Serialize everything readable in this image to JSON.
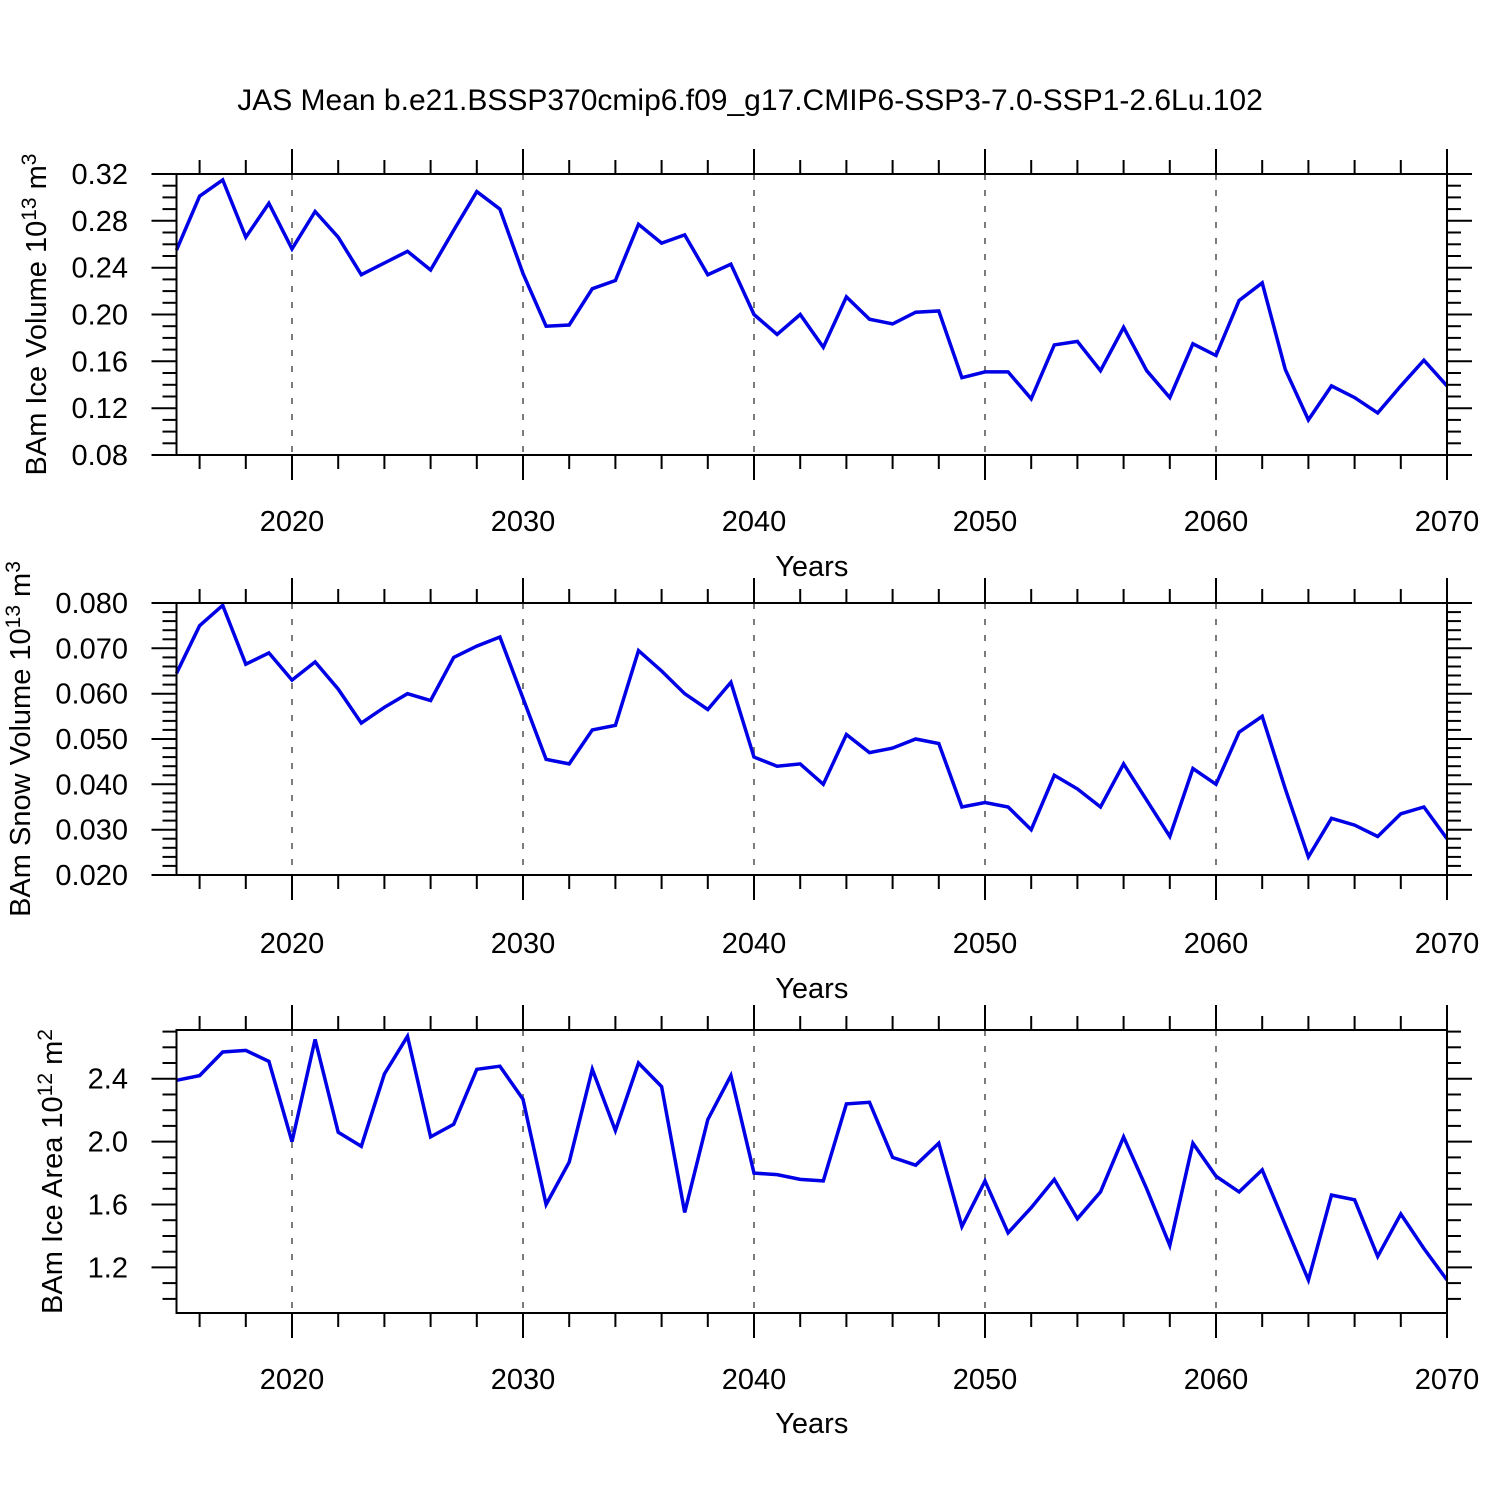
{
  "title": "JAS Mean b.e21.BSSP370cmip6.f09_g17.CMIP6-SSP3-7.0-SSP1-2.6Lu.102",
  "colors": {
    "line": "#0000e6",
    "grid": "#7c7c7c",
    "frame": "#000000",
    "text": "#000000",
    "background": "#ffffff"
  },
  "x_axis": {
    "label": "Years",
    "start": 2015,
    "end": 2070,
    "major_ticks": [
      2020,
      2030,
      2040,
      2050,
      2060,
      2070
    ],
    "minor_tick_interval": 2,
    "gridline_decades": [
      2020,
      2030,
      2040,
      2050,
      2060
    ]
  },
  "years": [
    2015,
    2016,
    2017,
    2018,
    2019,
    2020,
    2021,
    2022,
    2023,
    2024,
    2025,
    2026,
    2027,
    2028,
    2029,
    2030,
    2031,
    2032,
    2033,
    2034,
    2035,
    2036,
    2037,
    2038,
    2039,
    2040,
    2041,
    2042,
    2043,
    2044,
    2045,
    2046,
    2047,
    2048,
    2049,
    2050,
    2051,
    2052,
    2053,
    2054,
    2055,
    2056,
    2057,
    2058,
    2059,
    2060,
    2061,
    2062,
    2063,
    2064,
    2065,
    2066,
    2067,
    2068,
    2069,
    2070
  ],
  "chart_data": [
    {
      "type": "line",
      "series_name": "BAm Ice Volume",
      "ylabel": "BAm Ice Volume 10¹³ m³",
      "ylabel_parts": [
        [
          "t",
          "BAm Ice Volume 10"
        ],
        [
          "sup",
          "13"
        ],
        [
          "t",
          " m"
        ],
        [
          "sup",
          "3"
        ]
      ],
      "xlabel": "Years",
      "ylim": [
        0.08,
        0.32
      ],
      "yticks": [
        0.32,
        0.28,
        0.24,
        0.2,
        0.16,
        0.12,
        0.08
      ],
      "ytick_labels": [
        "0.32",
        "0.28",
        "0.24",
        "0.20",
        "0.16",
        "0.12",
        "0.08"
      ],
      "y_minor_step": 0.01,
      "grid": "vertical-dashed",
      "legend": "none",
      "values": [
        0.255,
        0.301,
        0.315,
        0.266,
        0.295,
        0.256,
        0.288,
        0.266,
        0.234,
        0.244,
        0.254,
        0.238,
        0.272,
        0.305,
        0.29,
        0.235,
        0.19,
        0.191,
        0.222,
        0.229,
        0.277,
        0.261,
        0.268,
        0.234,
        0.243,
        0.2,
        0.183,
        0.2,
        0.172,
        0.215,
        0.196,
        0.192,
        0.202,
        0.203,
        0.146,
        0.151,
        0.151,
        0.128,
        0.174,
        0.177,
        0.152,
        0.189,
        0.152,
        0.129,
        0.175,
        0.165,
        0.212,
        0.227,
        0.153,
        0.11,
        0.139,
        0.129,
        0.116,
        0.139,
        0.161,
        0.139
      ]
    },
    {
      "type": "line",
      "series_name": "BAm Snow Volume",
      "ylabel": "BAm Snow Volume 10¹³ m³",
      "ylabel_parts": [
        [
          "t",
          "BAm Snow Volume 10"
        ],
        [
          "sup",
          "13"
        ],
        [
          "t",
          " m"
        ],
        [
          "sup",
          "3"
        ]
      ],
      "xlabel": "Years",
      "ylim": [
        0.02,
        0.08
      ],
      "yticks": [
        0.08,
        0.07,
        0.06,
        0.05,
        0.04,
        0.03,
        0.02
      ],
      "ytick_labels": [
        "0.080",
        "0.070",
        "0.060",
        "0.050",
        "0.040",
        "0.030",
        "0.020"
      ],
      "y_minor_step": 0.002,
      "grid": "vertical-dashed",
      "legend": "none",
      "values": [
        0.0645,
        0.075,
        0.0795,
        0.0665,
        0.069,
        0.063,
        0.067,
        0.061,
        0.0535,
        0.057,
        0.06,
        0.0585,
        0.068,
        0.0705,
        0.0725,
        0.059,
        0.0455,
        0.0445,
        0.052,
        0.053,
        0.0695,
        0.065,
        0.06,
        0.0565,
        0.0625,
        0.046,
        0.044,
        0.0445,
        0.04,
        0.051,
        0.047,
        0.048,
        0.05,
        0.049,
        0.035,
        0.036,
        0.035,
        0.03,
        0.042,
        0.039,
        0.035,
        0.0445,
        0.0365,
        0.0285,
        0.0435,
        0.04,
        0.0515,
        0.055,
        0.039,
        0.024,
        0.0325,
        0.031,
        0.0285,
        0.0335,
        0.035,
        0.028
      ]
    },
    {
      "type": "line",
      "series_name": "BAm Ice Area",
      "ylabel": "BAm Ice Area 10¹² m²",
      "ylabel_parts": [
        [
          "t",
          "BAm Ice Area 10"
        ],
        [
          "sup",
          "12"
        ],
        [
          "t",
          " m"
        ],
        [
          "sup",
          "2"
        ]
      ],
      "xlabel": "Years",
      "ylim": [
        0.91,
        2.71
      ],
      "yticks": [
        2.4,
        2.0,
        1.6,
        1.2
      ],
      "ytick_labels": [
        "2.4",
        "2.0",
        "1.6",
        "1.2"
      ],
      "y_minor_step": 0.1,
      "grid": "vertical-dashed",
      "legend": "none",
      "values": [
        2.39,
        2.42,
        2.57,
        2.58,
        2.51,
        2.0,
        2.65,
        2.06,
        1.97,
        2.43,
        2.67,
        2.03,
        2.11,
        2.46,
        2.48,
        2.27,
        1.6,
        1.87,
        2.46,
        2.07,
        2.5,
        2.35,
        1.55,
        2.14,
        2.42,
        1.8,
        1.79,
        1.76,
        1.75,
        2.24,
        2.25,
        1.9,
        1.85,
        1.99,
        1.46,
        1.75,
        1.42,
        1.58,
        1.76,
        1.51,
        1.68,
        2.03,
        1.7,
        1.34,
        1.99,
        1.78,
        1.68,
        1.82,
        1.47,
        1.12,
        1.66,
        1.63,
        1.27,
        1.54,
        1.32,
        1.12
      ]
    }
  ]
}
